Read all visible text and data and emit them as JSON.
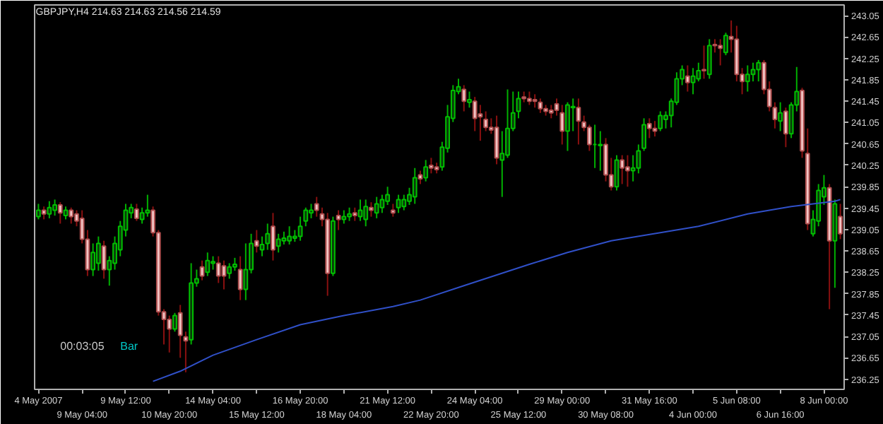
{
  "chart_data": {
    "type": "candlestick",
    "title": "GBPJPY,H4  214.63 214.63 214.56 214.59",
    "annotations": [
      "00:03:05",
      "Bar"
    ],
    "categories": [
      "4 May 2007",
      null,
      null,
      null,
      null,
      null,
      null,
      null,
      "9 May 04:00",
      null,
      null,
      null,
      null,
      null,
      null,
      null,
      "9 May 12:00",
      null,
      null,
      null,
      null,
      null,
      null,
      null,
      "10 May 20:00",
      null,
      null,
      null,
      null,
      null,
      null,
      null,
      "14 May 04:00",
      null,
      null,
      null,
      null,
      null,
      null,
      null,
      "15 May 12:00",
      null,
      null,
      null,
      null,
      null,
      null,
      null,
      "16 May 20:00",
      null,
      null,
      null,
      null,
      null,
      null,
      null,
      "18 May 04:00",
      null,
      null,
      null,
      null,
      null,
      null,
      null,
      "21 May 12:00",
      null,
      null,
      null,
      null,
      null,
      null,
      null,
      "22 May 20:00",
      null,
      null,
      null,
      null,
      null,
      null,
      null,
      "24 May 04:00",
      null,
      null,
      null,
      null,
      null,
      null,
      null,
      "25 May 12:00",
      null,
      null,
      null,
      null,
      null,
      null,
      null,
      "29 May 00:00",
      null,
      null,
      null,
      null,
      null,
      null,
      null,
      "30 May 08:00",
      null,
      null,
      null,
      null,
      null,
      null,
      null,
      "31 May 16:00",
      null,
      null,
      null,
      null,
      null,
      null,
      null,
      "4 Jun 00:00",
      null,
      null,
      null,
      null,
      null,
      null,
      null,
      "5 Jun 08:00",
      null,
      null,
      null,
      null,
      null,
      null,
      null,
      "6 Jun 16:00",
      null,
      null,
      null,
      null,
      null,
      null,
      null,
      "8 Jun 00:00",
      null,
      null,
      null
    ],
    "ohlc": [
      [
        239.29,
        239.53,
        239.24,
        239.41
      ],
      [
        239.41,
        239.48,
        239.24,
        239.34
      ],
      [
        239.34,
        239.58,
        239.26,
        239.46
      ],
      [
        239.41,
        239.61,
        239.31,
        239.51
      ],
      [
        239.51,
        239.56,
        239.16,
        239.36
      ],
      [
        239.31,
        239.48,
        239.24,
        239.41
      ],
      [
        239.41,
        239.46,
        239.16,
        239.29
      ],
      [
        239.34,
        239.41,
        239.11,
        239.21
      ],
      [
        239.26,
        239.41,
        238.79,
        238.87
      ],
      [
        238.87,
        239.04,
        238.18,
        238.3
      ],
      [
        238.3,
        238.79,
        238.18,
        238.62
      ],
      [
        238.42,
        238.92,
        238.28,
        238.79
      ],
      [
        238.74,
        238.84,
        238.13,
        238.3
      ],
      [
        238.3,
        238.55,
        238.0,
        238.47
      ],
      [
        238.42,
        238.92,
        238.3,
        238.79
      ],
      [
        238.67,
        239.21,
        238.55,
        239.11
      ],
      [
        239.04,
        239.53,
        238.92,
        239.41
      ],
      [
        239.36,
        239.53,
        239.26,
        239.46
      ],
      [
        239.43,
        239.53,
        239.21,
        239.26
      ],
      [
        239.24,
        239.46,
        239.16,
        239.36
      ],
      [
        239.36,
        239.7,
        239.29,
        239.41
      ],
      [
        239.41,
        239.48,
        238.92,
        238.99
      ],
      [
        238.99,
        239.04,
        237.44,
        237.51
      ],
      [
        237.51,
        237.56,
        236.9,
        237.37
      ],
      [
        237.37,
        237.44,
        236.75,
        237.19
      ],
      [
        237.19,
        237.49,
        237.14,
        237.44
      ],
      [
        237.49,
        237.64,
        236.65,
        237.07
      ],
      [
        237.04,
        237.14,
        236.38,
        236.97
      ],
      [
        236.99,
        238.42,
        236.9,
        238.05
      ],
      [
        238.05,
        238.3,
        237.98,
        238.13
      ],
      [
        238.35,
        238.47,
        238.1,
        238.18
      ],
      [
        238.25,
        238.62,
        238.18,
        238.47
      ],
      [
        238.42,
        238.55,
        238.3,
        238.45
      ],
      [
        238.42,
        238.55,
        238.05,
        238.18
      ],
      [
        238.37,
        238.47,
        237.93,
        238.18
      ],
      [
        238.23,
        238.42,
        238.13,
        238.35
      ],
      [
        238.35,
        238.52,
        238.28,
        238.4
      ],
      [
        238.3,
        238.55,
        237.73,
        237.93
      ],
      [
        237.93,
        238.79,
        237.73,
        238.3
      ],
      [
        238.3,
        238.97,
        238.23,
        238.79
      ],
      [
        238.84,
        239.04,
        238.62,
        238.74
      ],
      [
        238.67,
        238.92,
        238.55,
        238.77
      ],
      [
        238.79,
        239.16,
        238.67,
        238.97
      ],
      [
        239.11,
        239.36,
        238.47,
        238.67
      ],
      [
        238.74,
        238.97,
        238.62,
        238.87
      ],
      [
        238.84,
        239.01,
        238.77,
        238.89
      ],
      [
        238.84,
        239.11,
        238.77,
        238.92
      ],
      [
        238.89,
        239.04,
        238.82,
        238.92
      ],
      [
        238.92,
        239.29,
        238.84,
        239.11
      ],
      [
        239.21,
        239.46,
        239.11,
        239.41
      ],
      [
        239.36,
        239.53,
        239.26,
        239.41
      ],
      [
        239.53,
        239.66,
        239.29,
        239.41
      ],
      [
        239.34,
        239.46,
        239.11,
        239.24
      ],
      [
        239.24,
        239.36,
        237.81,
        238.23
      ],
      [
        238.23,
        239.29,
        238.18,
        239.21
      ],
      [
        239.31,
        239.41,
        239.04,
        239.24
      ],
      [
        239.24,
        239.41,
        239.16,
        239.29
      ],
      [
        239.29,
        239.46,
        239.21,
        239.34
      ],
      [
        239.36,
        239.46,
        239.21,
        239.31
      ],
      [
        239.29,
        239.61,
        239.21,
        239.41
      ],
      [
        239.24,
        239.61,
        239.11,
        239.48
      ],
      [
        239.46,
        239.56,
        239.29,
        239.41
      ],
      [
        239.36,
        239.66,
        239.26,
        239.53
      ],
      [
        239.46,
        239.7,
        239.36,
        239.61
      ],
      [
        239.58,
        239.85,
        239.51,
        239.7
      ],
      [
        239.41,
        239.53,
        239.29,
        239.36
      ],
      [
        239.46,
        239.7,
        239.36,
        239.61
      ],
      [
        239.48,
        239.7,
        239.41,
        239.61
      ],
      [
        239.58,
        239.83,
        239.51,
        239.7
      ],
      [
        239.66,
        240.2,
        239.53,
        240.02
      ],
      [
        240.07,
        240.15,
        239.9,
        240.0
      ],
      [
        240.02,
        240.35,
        239.95,
        240.22
      ],
      [
        240.25,
        240.39,
        240.1,
        240.2
      ],
      [
        240.22,
        240.3,
        240.1,
        240.17
      ],
      [
        240.22,
        240.69,
        240.15,
        240.59
      ],
      [
        240.57,
        241.38,
        240.49,
        241.16
      ],
      [
        241.13,
        241.75,
        241.06,
        241.65
      ],
      [
        241.63,
        241.87,
        241.58,
        241.72
      ],
      [
        241.67,
        241.75,
        241.26,
        241.45
      ],
      [
        241.43,
        241.63,
        241.33,
        241.48
      ],
      [
        241.45,
        241.53,
        240.89,
        241.13
      ],
      [
        241.21,
        241.38,
        240.71,
        241.16
      ],
      [
        241.11,
        241.26,
        240.89,
        240.96
      ],
      [
        240.96,
        241.13,
        240.84,
        240.91
      ],
      [
        240.96,
        241.18,
        240.27,
        240.39
      ],
      [
        240.35,
        240.89,
        239.66,
        240.47
      ],
      [
        240.44,
        241.67,
        240.39,
        240.94
      ],
      [
        240.94,
        241.63,
        240.89,
        241.23
      ],
      [
        241.26,
        241.63,
        241.13,
        241.5
      ],
      [
        241.53,
        241.63,
        241.43,
        241.5
      ],
      [
        241.5,
        241.63,
        241.38,
        241.45
      ],
      [
        241.48,
        241.58,
        241.33,
        241.45
      ],
      [
        241.43,
        241.5,
        241.23,
        241.31
      ],
      [
        241.31,
        241.38,
        241.18,
        241.26
      ],
      [
        241.28,
        241.38,
        241.13,
        241.23
      ],
      [
        241.4,
        241.5,
        241.18,
        241.28
      ],
      [
        241.23,
        241.38,
        240.64,
        240.89
      ],
      [
        240.89,
        241.43,
        240.52,
        241.38
      ],
      [
        241.33,
        241.5,
        240.89,
        241.35
      ],
      [
        241.33,
        241.5,
        240.64,
        241.08
      ],
      [
        241.06,
        241.18,
        240.89,
        240.96
      ],
      [
        240.96,
        241.01,
        240.52,
        240.64
      ],
      [
        240.64,
        241.01,
        240.2,
        240.64
      ],
      [
        240.62,
        240.89,
        240.15,
        240.64
      ],
      [
        240.64,
        240.76,
        239.95,
        240.07
      ],
      [
        240.07,
        240.39,
        239.78,
        239.85
      ],
      [
        239.85,
        240.44,
        239.78,
        240.35
      ],
      [
        240.35,
        240.44,
        239.9,
        240.2
      ],
      [
        240.22,
        240.44,
        239.85,
        240.15
      ],
      [
        240.15,
        240.44,
        239.95,
        240.2
      ],
      [
        240.2,
        240.64,
        240.1,
        240.52
      ],
      [
        240.57,
        241.13,
        240.52,
        241.01
      ],
      [
        241.03,
        241.13,
        240.76,
        240.94
      ],
      [
        240.94,
        241.08,
        240.79,
        240.89
      ],
      [
        240.94,
        241.26,
        240.89,
        241.18
      ],
      [
        241.11,
        241.26,
        240.94,
        241.18
      ],
      [
        241.18,
        241.5,
        240.96,
        241.45
      ],
      [
        241.43,
        241.99,
        241.38,
        241.87
      ],
      [
        241.87,
        242.12,
        241.75,
        242.04
      ],
      [
        241.92,
        242.12,
        241.63,
        241.8
      ],
      [
        241.8,
        242.07,
        241.58,
        241.92
      ],
      [
        241.87,
        242.17,
        241.82,
        242.02
      ],
      [
        242.04,
        242.49,
        241.87,
        242.02
      ],
      [
        241.95,
        242.61,
        241.87,
        242.49
      ],
      [
        242.51,
        242.61,
        242.36,
        242.49
      ],
      [
        242.49,
        242.61,
        242.12,
        242.44
      ],
      [
        242.36,
        242.73,
        242.31,
        242.68
      ],
      [
        242.66,
        242.96,
        242.36,
        242.61
      ],
      [
        242.61,
        242.86,
        241.82,
        241.95
      ],
      [
        241.95,
        242.07,
        241.58,
        241.82
      ],
      [
        241.82,
        242.12,
        241.63,
        241.95
      ],
      [
        241.95,
        242.17,
        241.82,
        242.04
      ],
      [
        242.04,
        242.22,
        241.82,
        242.17
      ],
      [
        242.17,
        242.22,
        241.58,
        241.67
      ],
      [
        241.67,
        241.82,
        241.26,
        241.35
      ],
      [
        241.33,
        241.43,
        240.94,
        241.11
      ],
      [
        241.08,
        241.43,
        240.89,
        241.23
      ],
      [
        241.26,
        241.33,
        240.59,
        240.84
      ],
      [
        240.84,
        241.43,
        240.76,
        241.38
      ],
      [
        241.38,
        242.09,
        241.26,
        241.63
      ],
      [
        241.65,
        241.7,
        240.39,
        240.52
      ],
      [
        240.47,
        240.94,
        239.04,
        239.16
      ],
      [
        238.97,
        239.41,
        238.92,
        239.24
      ],
      [
        239.21,
        239.9,
        239.11,
        239.78
      ],
      [
        239.66,
        240.07,
        239.51,
        239.83
      ],
      [
        239.83,
        239.9,
        237.56,
        238.84
      ],
      [
        238.84,
        239.61,
        237.96,
        239.53
      ],
      [
        239.29,
        239.53,
        238.87,
        238.97
      ]
    ],
    "series": [
      {
        "type": "line",
        "color": "#3050c8",
        "values": [
          null,
          null,
          null,
          null,
          null,
          null,
          null,
          null,
          null,
          null,
          null,
          null,
          null,
          null,
          null,
          null,
          null,
          null,
          null,
          null,
          null,
          236.21,
          null,
          null,
          null,
          null,
          236.4,
          null,
          null,
          null,
          null,
          null,
          236.7,
          null,
          null,
          null,
          null,
          null,
          null,
          null,
          236.99,
          null,
          null,
          null,
          null,
          null,
          null,
          null,
          237.27,
          null,
          null,
          null,
          null,
          null,
          null,
          null,
          237.44,
          null,
          null,
          null,
          null,
          null,
          null,
          null,
          null,
          237.61,
          null,
          null,
          null,
          null,
          237.73,
          null,
          null,
          null,
          null,
          null,
          null,
          null,
          238.0,
          null,
          null,
          null,
          null,
          null,
          null,
          null,
          null,
          null,
          null,
          null,
          238.4,
          null,
          null,
          null,
          null,
          null,
          null,
          238.62,
          null,
          null,
          null,
          null,
          null,
          null,
          null,
          238.84,
          null,
          null,
          null,
          null,
          null,
          null,
          null,
          null,
          238.99,
          null,
          null,
          null,
          null,
          null,
          null,
          239.11,
          null,
          null,
          null,
          null,
          null,
          null,
          null,
          null,
          239.34,
          null,
          null,
          null,
          null,
          null,
          null,
          null,
          239.48,
          null,
          null,
          null,
          null,
          null,
          null,
          null,
          239.58,
          239.61
        ]
      }
    ],
    "ylim": [
      236.06,
      243.25
    ],
    "yticks": [
      236.25,
      236.65,
      237.05,
      237.45,
      237.85,
      238.25,
      238.65,
      239.05,
      239.45,
      239.85,
      240.25,
      240.65,
      241.05,
      241.45,
      241.85,
      242.25,
      242.65,
      243.05
    ]
  }
}
